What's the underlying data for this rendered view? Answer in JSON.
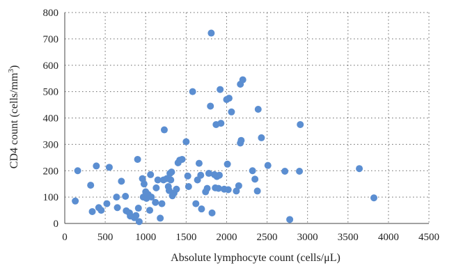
{
  "chart_data": {
    "type": "scatter",
    "xlabel": "Absolute lymphocyte count (cells/μL)",
    "ylabel": "CD4 count (cells/mm",
    "ylabel_superscript": "3",
    "ylabel_suffix": ")",
    "xlim": [
      0,
      4500
    ],
    "ylim": [
      0,
      800
    ],
    "x_ticks": [
      0,
      500,
      1000,
      1500,
      2000,
      2500,
      3000,
      3500,
      4000,
      4500
    ],
    "y_ticks": [
      0,
      100,
      200,
      300,
      400,
      500,
      600,
      700,
      800
    ],
    "grid": true,
    "marker_color": "#5b8ed1",
    "points": [
      {
        "x": 130,
        "y": 85
      },
      {
        "x": 160,
        "y": 200
      },
      {
        "x": 320,
        "y": 145
      },
      {
        "x": 340,
        "y": 45
      },
      {
        "x": 390,
        "y": 218
      },
      {
        "x": 420,
        "y": 60
      },
      {
        "x": 450,
        "y": 50
      },
      {
        "x": 520,
        "y": 75
      },
      {
        "x": 550,
        "y": 213
      },
      {
        "x": 640,
        "y": 100
      },
      {
        "x": 650,
        "y": 60
      },
      {
        "x": 700,
        "y": 160
      },
      {
        "x": 750,
        "y": 103
      },
      {
        "x": 760,
        "y": 48
      },
      {
        "x": 800,
        "y": 40
      },
      {
        "x": 810,
        "y": 28
      },
      {
        "x": 860,
        "y": 22
      },
      {
        "x": 880,
        "y": 30
      },
      {
        "x": 900,
        "y": 243
      },
      {
        "x": 910,
        "y": 58
      },
      {
        "x": 920,
        "y": 7
      },
      {
        "x": 960,
        "y": 170
      },
      {
        "x": 970,
        "y": 100
      },
      {
        "x": 980,
        "y": 150
      },
      {
        "x": 1000,
        "y": 120
      },
      {
        "x": 1010,
        "y": 95
      },
      {
        "x": 1030,
        "y": 110
      },
      {
        "x": 1050,
        "y": 50
      },
      {
        "x": 1060,
        "y": 185
      },
      {
        "x": 1070,
        "y": 100
      },
      {
        "x": 1120,
        "y": 80
      },
      {
        "x": 1130,
        "y": 135
      },
      {
        "x": 1150,
        "y": 165
      },
      {
        "x": 1180,
        "y": 20
      },
      {
        "x": 1200,
        "y": 75
      },
      {
        "x": 1220,
        "y": 165
      },
      {
        "x": 1230,
        "y": 355
      },
      {
        "x": 1260,
        "y": 170
      },
      {
        "x": 1280,
        "y": 140
      },
      {
        "x": 1290,
        "y": 125
      },
      {
        "x": 1300,
        "y": 190
      },
      {
        "x": 1310,
        "y": 165
      },
      {
        "x": 1320,
        "y": 195
      },
      {
        "x": 1330,
        "y": 105
      },
      {
        "x": 1350,
        "y": 115
      },
      {
        "x": 1380,
        "y": 130
      },
      {
        "x": 1400,
        "y": 230
      },
      {
        "x": 1420,
        "y": 240
      },
      {
        "x": 1450,
        "y": 243
      },
      {
        "x": 1500,
        "y": 310
      },
      {
        "x": 1520,
        "y": 180
      },
      {
        "x": 1530,
        "y": 140
      },
      {
        "x": 1580,
        "y": 500
      },
      {
        "x": 1620,
        "y": 75
      },
      {
        "x": 1640,
        "y": 165
      },
      {
        "x": 1660,
        "y": 228
      },
      {
        "x": 1680,
        "y": 183
      },
      {
        "x": 1690,
        "y": 55
      },
      {
        "x": 1740,
        "y": 120
      },
      {
        "x": 1760,
        "y": 133
      },
      {
        "x": 1780,
        "y": 190
      },
      {
        "x": 1800,
        "y": 445
      },
      {
        "x": 1810,
        "y": 722
      },
      {
        "x": 1820,
        "y": 40
      },
      {
        "x": 1850,
        "y": 185
      },
      {
        "x": 1860,
        "y": 135
      },
      {
        "x": 1870,
        "y": 375
      },
      {
        "x": 1880,
        "y": 178
      },
      {
        "x": 1900,
        "y": 133
      },
      {
        "x": 1910,
        "y": 183
      },
      {
        "x": 1920,
        "y": 508
      },
      {
        "x": 1930,
        "y": 380
      },
      {
        "x": 1970,
        "y": 130
      },
      {
        "x": 2000,
        "y": 470
      },
      {
        "x": 2010,
        "y": 225
      },
      {
        "x": 2020,
        "y": 128
      },
      {
        "x": 2030,
        "y": 475
      },
      {
        "x": 2060,
        "y": 423
      },
      {
        "x": 2120,
        "y": 123
      },
      {
        "x": 2150,
        "y": 143
      },
      {
        "x": 2170,
        "y": 305
      },
      {
        "x": 2170,
        "y": 528
      },
      {
        "x": 2180,
        "y": 315
      },
      {
        "x": 2200,
        "y": 545
      },
      {
        "x": 2320,
        "y": 200
      },
      {
        "x": 2350,
        "y": 168
      },
      {
        "x": 2380,
        "y": 123
      },
      {
        "x": 2390,
        "y": 433
      },
      {
        "x": 2430,
        "y": 325
      },
      {
        "x": 2510,
        "y": 220
      },
      {
        "x": 2720,
        "y": 198
      },
      {
        "x": 2780,
        "y": 15
      },
      {
        "x": 2900,
        "y": 198
      },
      {
        "x": 2910,
        "y": 375
      },
      {
        "x": 3640,
        "y": 208
      },
      {
        "x": 3820,
        "y": 97
      }
    ]
  }
}
